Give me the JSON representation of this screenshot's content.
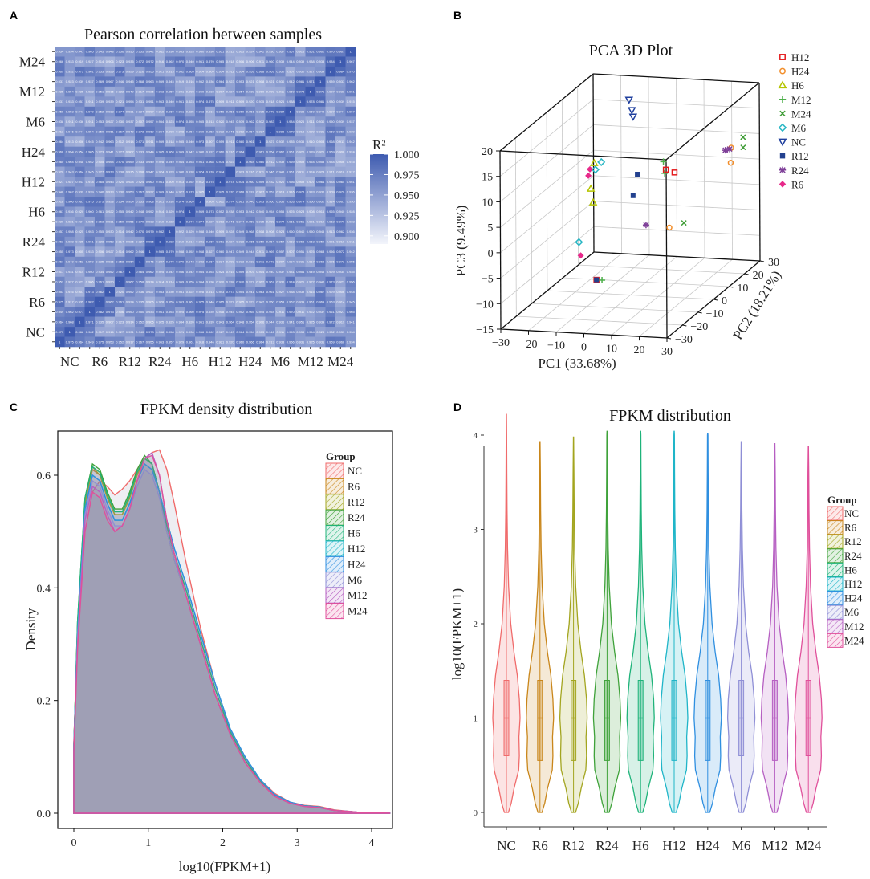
{
  "panels": {
    "A": {
      "label": "A",
      "title": "Pearson correlation between samples"
    },
    "B": {
      "label": "B",
      "title": "PCA 3D Plot"
    },
    "C": {
      "label": "C",
      "title": "FPKM density distribution"
    },
    "D": {
      "label": "D",
      "title": "FPKM distribution"
    }
  },
  "chart_data": [
    {
      "type": "heatmap",
      "title": "Pearson correlation between samples",
      "x_categories": [
        "NC",
        "R6",
        "R12",
        "R24",
        "H6",
        "H12",
        "H24",
        "M6",
        "M12",
        "M24"
      ],
      "y_categories": [
        "M24",
        "M12",
        "M6",
        "H24",
        "H12",
        "H6",
        "R24",
        "R12",
        "R6",
        "NC"
      ],
      "replicates_per_group": 3,
      "colorbar": {
        "label": "R²",
        "ticks": [
          "1.000",
          "0.975",
          "0.950",
          "0.925",
          "0.900"
        ],
        "range": [
          0.89,
          1.0
        ],
        "low_color": "#f3f5fb",
        "high_color": "#3e5bb0"
      },
      "value_range_observed": [
        0.89,
        1.0
      ]
    },
    {
      "type": "scatter",
      "title": "PCA 3D Plot",
      "xlabel": "PC1 (33.68%)",
      "ylabel": "PC2 (18.21%)",
      "zlabel": "PC3 (9.49%)",
      "x_ticks": [
        "−30",
        "−20",
        "−10",
        "0",
        "10",
        "20",
        "30"
      ],
      "y_ticks": [
        "−30",
        "−20",
        "−10",
        "0",
        "10",
        "20",
        "30"
      ],
      "z_ticks": [
        "−15",
        "−10",
        "−5",
        "0",
        "5",
        "10",
        "15",
        "20"
      ],
      "series": [
        {
          "name": "H12",
          "color": "#e41a1c",
          "marker": "square-open",
          "points": [
            [
              13,
              0,
              10
            ],
            [
              15,
              2,
              9
            ],
            [
              -1,
              -20,
              -7
            ]
          ]
        },
        {
          "name": "H24",
          "color": "#f28e2b",
          "marker": "circle-open",
          "points": [
            [
              22,
              26,
              8
            ],
            [
              17,
              -5,
              0
            ],
            [
              28,
              15,
              8
            ]
          ]
        },
        {
          "name": "H6",
          "color": "#b5c400",
          "marker": "triangle-open",
          "points": [
            [
              -14,
              2,
              10
            ],
            [
              -13,
              -2,
              6
            ],
            [
              -15,
              3,
              2
            ]
          ]
        },
        {
          "name": "M12",
          "color": "#4daf4a",
          "marker": "plus",
          "points": [
            [
              11,
              2,
              11
            ],
            [
              12,
              1,
              9
            ],
            [
              1,
              -20,
              -7
            ]
          ]
        },
        {
          "name": "M24",
          "color": "#3e9c35",
          "marker": "cross",
          "points": [
            [
              28,
              23,
              11
            ],
            [
              28,
              23,
              9
            ],
            [
              20,
              -1,
              0
            ]
          ]
        },
        {
          "name": "M6",
          "color": "#27b6c4",
          "marker": "diamond-open",
          "points": [
            [
              -12,
              3,
              10
            ],
            [
              -13,
              1,
              9
            ],
            [
              -14,
              -8,
              -3
            ]
          ]
        },
        {
          "name": "NC",
          "color": "#1f3f9e",
          "marker": "triangle-down-open",
          "points": [
            [
              -3,
              5,
              22
            ],
            [
              -2,
              5,
              20
            ],
            [
              -1,
              4,
              19
            ]
          ]
        },
        {
          "name": "R12",
          "color": "#23418f",
          "marker": "square-filled",
          "points": [
            [
              1,
              3,
              8
            ],
            [
              0,
              2,
              4
            ],
            [
              -1,
              -20,
              -7
            ]
          ]
        },
        {
          "name": "R24",
          "color": "#7e3f98",
          "marker": "asterisk",
          "points": [
            [
              22,
              25,
              8
            ],
            [
              21,
              24,
              8
            ],
            [
              8,
              -4,
              0
            ]
          ]
        },
        {
          "name": "R6",
          "color": "#e7298a",
          "marker": "diamond-filled",
          "points": [
            [
              -15,
              1,
              9
            ],
            [
              -15,
              0,
              8
            ],
            [
              -10,
              -14,
              -4
            ]
          ]
        }
      ]
    },
    {
      "type": "area",
      "title": "FPKM density distribution",
      "xlabel": "log10(FPKM+1)",
      "ylabel": "Density",
      "xlim": [
        0,
        4.25
      ],
      "ylim": [
        0,
        0.69
      ],
      "x_ticks": [
        "0",
        "1",
        "2",
        "3",
        "4"
      ],
      "y_ticks": [
        "0.0",
        "0.2",
        "0.4",
        "0.6"
      ],
      "legend_title": "Group",
      "x": [
        0,
        0.05,
        0.15,
        0.25,
        0.35,
        0.45,
        0.55,
        0.65,
        0.75,
        0.85,
        0.95,
        1.05,
        1.15,
        1.25,
        1.35,
        1.5,
        1.7,
        1.9,
        2.1,
        2.3,
        2.5,
        2.7,
        2.9,
        3.1,
        3.3,
        3.5,
        3.8,
        4.25
      ],
      "series": [
        {
          "name": "NC",
          "color": "#f06b6b",
          "values": [
            0.13,
            0.3,
            0.5,
            0.57,
            0.59,
            0.58,
            0.565,
            0.575,
            0.59,
            0.61,
            0.63,
            0.64,
            0.645,
            0.61,
            0.55,
            0.45,
            0.33,
            0.23,
            0.15,
            0.1,
            0.06,
            0.035,
            0.02,
            0.014,
            0.012,
            0.006,
            0.002,
            0
          ]
        },
        {
          "name": "R6",
          "color": "#c9861a",
          "values": [
            0.12,
            0.33,
            0.55,
            0.61,
            0.6,
            0.56,
            0.53,
            0.53,
            0.56,
            0.6,
            0.63,
            0.62,
            0.57,
            0.5,
            0.45,
            0.39,
            0.3,
            0.21,
            0.14,
            0.09,
            0.055,
            0.03,
            0.018,
            0.012,
            0.01,
            0.005,
            0.002,
            0
          ]
        },
        {
          "name": "R12",
          "color": "#a3a51f",
          "values": [
            0.12,
            0.33,
            0.55,
            0.615,
            0.6,
            0.56,
            0.53,
            0.53,
            0.56,
            0.6,
            0.63,
            0.62,
            0.57,
            0.5,
            0.45,
            0.39,
            0.3,
            0.21,
            0.14,
            0.09,
            0.055,
            0.03,
            0.018,
            0.012,
            0.01,
            0.005,
            0.002,
            0
          ]
        },
        {
          "name": "R24",
          "color": "#3fa23a",
          "values": [
            0.12,
            0.34,
            0.56,
            0.62,
            0.61,
            0.57,
            0.54,
            0.54,
            0.57,
            0.61,
            0.635,
            0.62,
            0.57,
            0.51,
            0.46,
            0.4,
            0.31,
            0.22,
            0.145,
            0.095,
            0.057,
            0.032,
            0.019,
            0.013,
            0.011,
            0.005,
            0.002,
            0
          ]
        },
        {
          "name": "H6",
          "color": "#1fb37a",
          "values": [
            0.12,
            0.34,
            0.56,
            0.615,
            0.605,
            0.565,
            0.535,
            0.535,
            0.565,
            0.605,
            0.63,
            0.62,
            0.57,
            0.51,
            0.46,
            0.4,
            0.31,
            0.22,
            0.145,
            0.095,
            0.057,
            0.032,
            0.019,
            0.013,
            0.011,
            0.005,
            0.002,
            0
          ]
        },
        {
          "name": "H12",
          "color": "#1fb5c8",
          "values": [
            0.12,
            0.32,
            0.54,
            0.6,
            0.59,
            0.55,
            0.52,
            0.52,
            0.55,
            0.59,
            0.62,
            0.61,
            0.57,
            0.52,
            0.47,
            0.41,
            0.32,
            0.23,
            0.15,
            0.1,
            0.06,
            0.033,
            0.02,
            0.013,
            0.011,
            0.005,
            0.002,
            0
          ]
        },
        {
          "name": "H24",
          "color": "#2f8fe0",
          "values": [
            0.12,
            0.32,
            0.54,
            0.6,
            0.59,
            0.55,
            0.52,
            0.52,
            0.55,
            0.59,
            0.62,
            0.61,
            0.57,
            0.52,
            0.47,
            0.41,
            0.32,
            0.23,
            0.15,
            0.1,
            0.06,
            0.033,
            0.02,
            0.013,
            0.011,
            0.005,
            0.002,
            0
          ]
        },
        {
          "name": "M6",
          "color": "#8f8fd6",
          "values": [
            0.12,
            0.31,
            0.53,
            0.59,
            0.58,
            0.54,
            0.51,
            0.51,
            0.54,
            0.58,
            0.61,
            0.6,
            0.56,
            0.5,
            0.45,
            0.39,
            0.3,
            0.21,
            0.14,
            0.09,
            0.055,
            0.03,
            0.018,
            0.012,
            0.01,
            0.005,
            0.002,
            0
          ]
        },
        {
          "name": "M12",
          "color": "#b65fc2",
          "values": [
            0.11,
            0.3,
            0.52,
            0.58,
            0.57,
            0.53,
            0.5,
            0.51,
            0.54,
            0.59,
            0.63,
            0.64,
            0.6,
            0.52,
            0.46,
            0.39,
            0.3,
            0.21,
            0.14,
            0.09,
            0.055,
            0.03,
            0.018,
            0.012,
            0.01,
            0.005,
            0.002,
            0
          ]
        },
        {
          "name": "M24",
          "color": "#e0509b",
          "values": [
            0.11,
            0.29,
            0.5,
            0.57,
            0.56,
            0.52,
            0.5,
            0.51,
            0.54,
            0.59,
            0.63,
            0.635,
            0.6,
            0.52,
            0.46,
            0.39,
            0.3,
            0.21,
            0.14,
            0.09,
            0.055,
            0.03,
            0.018,
            0.012,
            0.01,
            0.005,
            0.002,
            0
          ]
        }
      ]
    },
    {
      "type": "violin",
      "title": "FPKM distribution",
      "xlabel": "",
      "ylabel": "log10(FPKM+1)",
      "ylim": [
        -0.1,
        4.4
      ],
      "y_ticks": [
        "0",
        "1",
        "2",
        "3",
        "4"
      ],
      "legend_title": "Group",
      "categories": [
        "NC",
        "R6",
        "R12",
        "R24",
        "H6",
        "H12",
        "H24",
        "M6",
        "M12",
        "M24"
      ],
      "colors": [
        "#f06b6b",
        "#c9861a",
        "#a3a51f",
        "#3fa23a",
        "#1fb37a",
        "#1fb5c8",
        "#2f8fe0",
        "#8f8fd6",
        "#b65fc2",
        "#e0509b"
      ],
      "max": [
        4.22,
        3.93,
        3.98,
        4.04,
        4.04,
        4.04,
        4.02,
        3.93,
        3.91,
        3.88
      ],
      "min": [
        0,
        0,
        0,
        0,
        0,
        0,
        0,
        0,
        0,
        0
      ],
      "q1": [
        0.6,
        0.55,
        0.55,
        0.55,
        0.55,
        0.55,
        0.55,
        0.6,
        0.55,
        0.6
      ],
      "median": [
        1.0,
        1.0,
        1.0,
        1.0,
        1.0,
        1.0,
        1.0,
        1.0,
        1.0,
        1.0
      ],
      "q3": [
        1.4,
        1.4,
        1.4,
        1.4,
        1.4,
        1.4,
        1.4,
        1.4,
        1.4,
        1.4
      ]
    }
  ]
}
